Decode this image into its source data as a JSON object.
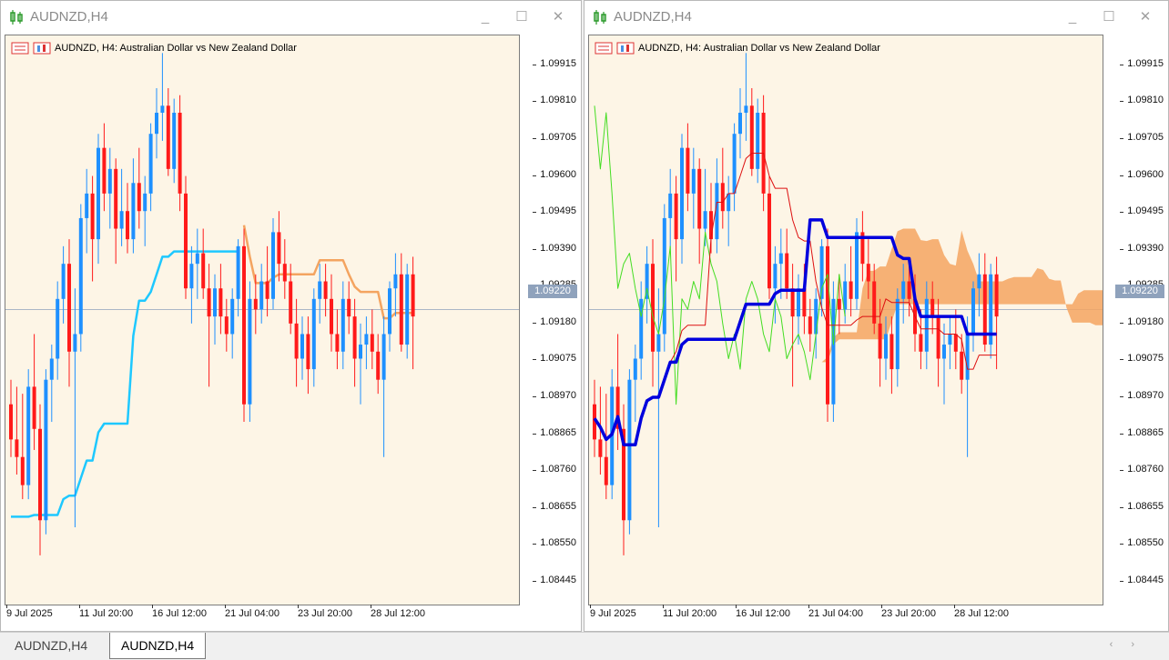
{
  "windows": [
    {
      "title": "AUDNZD,H4",
      "header": "AUDNZD, H4:  Australian Dollar vs New Zealand Dollar",
      "indicators": [
        "supertrend"
      ]
    },
    {
      "title": "AUDNZD,H4",
      "header": "AUDNZD, H4:  Australian Dollar vs New Zealand Dollar",
      "indicators": [
        "ichimoku"
      ]
    }
  ],
  "window_buttons": {
    "minimize": "_",
    "maximize": "☐",
    "close": "✕"
  },
  "price_scale": [
    "1.09915",
    "1.09810",
    "1.09705",
    "1.09600",
    "1.09495",
    "1.09390",
    "1.09285",
    "1.09180",
    "1.09075",
    "1.08970",
    "1.08865",
    "1.08760",
    "1.08655",
    "1.08550",
    "1.08445"
  ],
  "current_price": "1.09220",
  "time_labels": [
    "9 Jul 2025",
    "11 Jul 20:00",
    "16 Jul 12:00",
    "21 Jul 04:00",
    "23 Jul 20:00",
    "28 Jul 12:00"
  ],
  "tabs": [
    "AUDNZD,H4",
    "AUDNZD,H4"
  ],
  "active_tab": 1,
  "colors": {
    "background": "#fdf5e6",
    "bull_candle": "#1e90ff",
    "bear_candle": "#ff1a1a",
    "supertrend_up": "#1ec8ff",
    "supertrend_down": "#f4a460",
    "kijun": "#0000dd",
    "tenkan": "#dd1010",
    "chikou": "#44dd22",
    "kumo_bull": "#f4a460",
    "kumo_bear": "#d8bfd8",
    "price_line": "#8fa2bc"
  },
  "chart_data": {
    "type": "candlestick",
    "symbol": "AUDNZD",
    "timeframe": "H4",
    "ylim": [
      1.0838,
      1.1
    ],
    "current_price": 1.0922,
    "ohlc": [
      [
        1.0895,
        1.0902,
        1.088,
        1.0885
      ],
      [
        1.0885,
        1.09,
        1.0875,
        1.088
      ],
      [
        1.088,
        1.0898,
        1.0868,
        1.0872
      ],
      [
        1.0872,
        1.0905,
        1.0868,
        1.09
      ],
      [
        1.09,
        1.0915,
        1.0882,
        1.0888
      ],
      [
        1.0888,
        1.0895,
        1.0852,
        1.0862
      ],
      [
        1.0862,
        1.0905,
        1.0858,
        1.0902
      ],
      [
        1.0902,
        1.0912,
        1.089,
        1.0908
      ],
      [
        1.0908,
        1.093,
        1.0902,
        1.0925
      ],
      [
        1.0925,
        1.094,
        1.0918,
        1.0935
      ],
      [
        1.0935,
        1.0942,
        1.09,
        1.091
      ],
      [
        1.091,
        1.0928,
        1.086,
        1.0915
      ],
      [
        1.0915,
        1.0952,
        1.091,
        1.0948
      ],
      [
        1.0948,
        1.0962,
        1.0938,
        1.0955
      ],
      [
        1.0955,
        1.096,
        1.093,
        1.0942
      ],
      [
        1.0942,
        1.0972,
        1.0935,
        1.0968
      ],
      [
        1.0968,
        1.0975,
        1.095,
        1.0955
      ],
      [
        1.0955,
        1.0968,
        1.0945,
        1.0962
      ],
      [
        1.0962,
        1.0965,
        1.0935,
        1.0945
      ],
      [
        1.0945,
        1.0962,
        1.094,
        1.095
      ],
      [
        1.095,
        1.0958,
        1.0938,
        1.0942
      ],
      [
        1.0942,
        1.0965,
        1.0938,
        1.0958
      ],
      [
        1.0958,
        1.0968,
        1.0945,
        1.095
      ],
      [
        1.095,
        1.096,
        1.094,
        1.0955
      ],
      [
        1.0955,
        1.0975,
        1.095,
        1.0972
      ],
      [
        1.0972,
        1.0985,
        1.0965,
        1.0978
      ],
      [
        1.0978,
        1.0995,
        1.097,
        1.098
      ],
      [
        1.098,
        1.0985,
        1.096,
        1.0962
      ],
      [
        1.0962,
        1.0982,
        1.0958,
        1.0978
      ],
      [
        1.0978,
        1.0983,
        1.095,
        1.0955
      ],
      [
        1.0955,
        1.096,
        1.0925,
        1.0928
      ],
      [
        1.0928,
        1.094,
        1.0918,
        1.0935
      ],
      [
        1.0935,
        1.0945,
        1.0925,
        1.0938
      ],
      [
        1.0938,
        1.0945,
        1.0925,
        1.0928
      ],
      [
        1.0928,
        1.0935,
        1.09,
        1.092
      ],
      [
        1.092,
        1.0932,
        1.0912,
        1.0928
      ],
      [
        1.0928,
        1.0935,
        1.0915,
        1.092
      ],
      [
        1.092,
        1.0925,
        1.091,
        1.0915
      ],
      [
        1.0915,
        1.0928,
        1.0908,
        1.0925
      ],
      [
        1.0925,
        1.0942,
        1.092,
        1.094
      ],
      [
        1.094,
        1.0945,
        1.089,
        1.0895
      ],
      [
        1.0895,
        1.093,
        1.089,
        1.0925
      ],
      [
        1.0925,
        1.0932,
        1.0915,
        1.0922
      ],
      [
        1.0922,
        1.0935,
        1.0918,
        1.093
      ],
      [
        1.093,
        1.094,
        1.092,
        1.0925
      ],
      [
        1.0925,
        1.0948,
        1.0922,
        1.0944
      ],
      [
        1.0944,
        1.095,
        1.093,
        1.0935
      ],
      [
        1.0935,
        1.0942,
        1.0925,
        1.093
      ],
      [
        1.093,
        1.0935,
        1.0915,
        1.0918
      ],
      [
        1.0918,
        1.0925,
        1.09,
        1.0908
      ],
      [
        1.0908,
        1.092,
        1.0902,
        1.0915
      ],
      [
        1.0915,
        1.092,
        1.0898,
        1.0905
      ],
      [
        1.0905,
        1.0928,
        1.09,
        1.0925
      ],
      [
        1.0925,
        1.0935,
        1.0918,
        1.093
      ],
      [
        1.093,
        1.0935,
        1.092,
        1.0925
      ],
      [
        1.0925,
        1.0932,
        1.091,
        1.0915
      ],
      [
        1.0915,
        1.0922,
        1.0905,
        1.091
      ],
      [
        1.091,
        1.093,
        1.0905,
        1.0925
      ],
      [
        1.0925,
        1.093,
        1.0915,
        1.092
      ],
      [
        1.092,
        1.0925,
        1.09,
        1.0908
      ],
      [
        1.0908,
        1.0918,
        1.0895,
        1.0912
      ],
      [
        1.0912,
        1.092,
        1.0905,
        1.0915
      ],
      [
        1.0915,
        1.0922,
        1.0905,
        1.091
      ],
      [
        1.091,
        1.0915,
        1.0898,
        1.0902
      ],
      [
        1.0902,
        1.092,
        1.088,
        1.0915
      ],
      [
        1.0915,
        1.093,
        1.091,
        1.0928
      ],
      [
        1.0928,
        1.0938,
        1.092,
        1.0932
      ],
      [
        1.0932,
        1.0938,
        1.091,
        1.0912
      ],
      [
        1.0912,
        1.0935,
        1.0908,
        1.0932
      ],
      [
        1.0932,
        1.0937,
        1.0905,
        1.092
      ]
    ]
  }
}
